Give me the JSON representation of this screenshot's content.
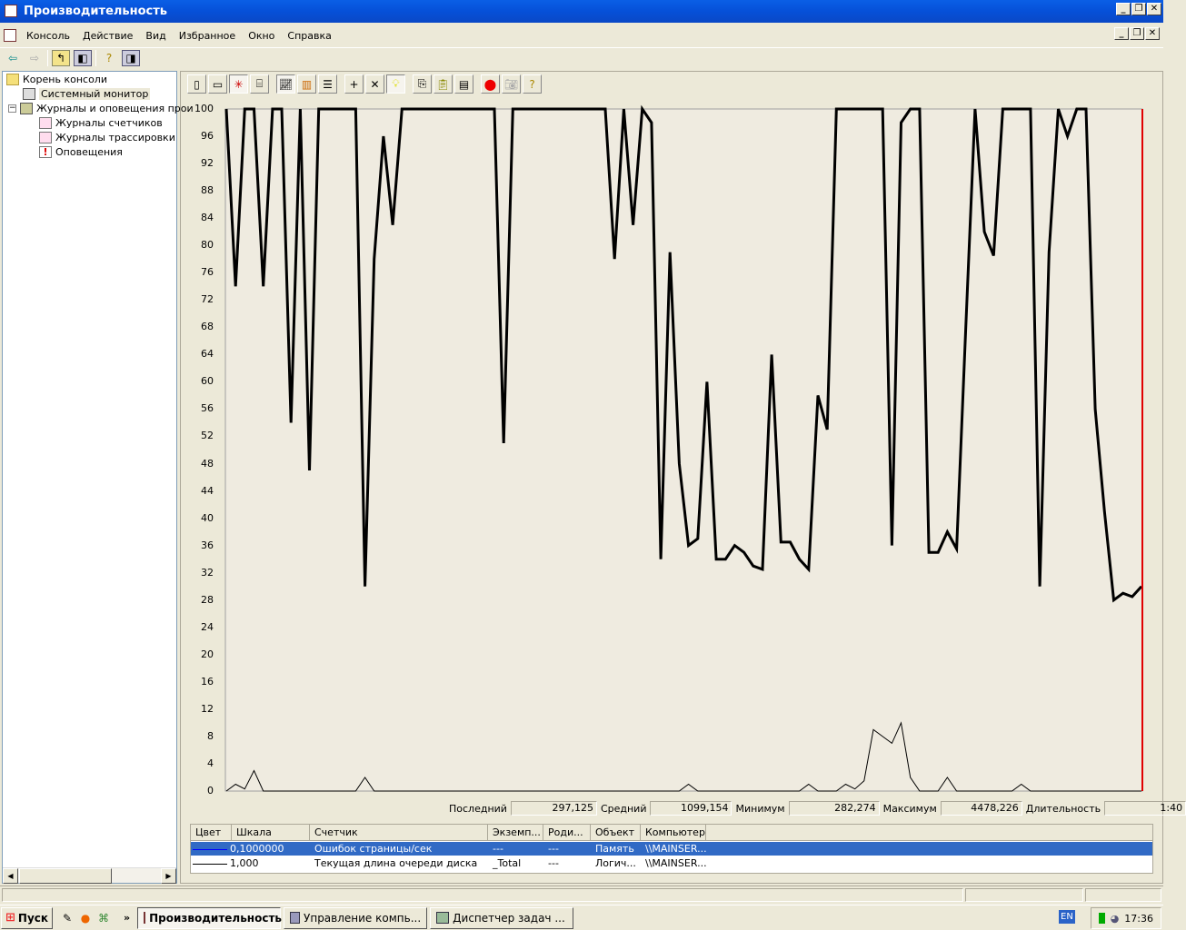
{
  "window": {
    "title": "Производительность"
  },
  "menu": [
    "Консоль",
    "Действие",
    "Вид",
    "Избранное",
    "Окно",
    "Справка"
  ],
  "tree": {
    "root": "Корень консоли",
    "items": [
      {
        "label": "Системный монитор",
        "icon": "monitor-icon",
        "selected": true
      },
      {
        "label": "Журналы и оповещения прои",
        "icon": "logs-icon",
        "expanded": true
      },
      {
        "label": "Журналы счетчиков",
        "icon": "chart-log-icon"
      },
      {
        "label": "Журналы трассировки",
        "icon": "chart-log-icon"
      },
      {
        "label": "Оповещения",
        "icon": "alert-icon"
      }
    ]
  },
  "graph_toolbar": [
    "new-counter-set",
    "clear-display",
    "view-current-activity",
    "view-log-data",
    "view-graph",
    "view-histogram",
    "view-report",
    "add-counter",
    "delete-counter",
    "highlight",
    "copy-properties",
    "paste-counter-list",
    "properties",
    "freeze-display",
    "update-data",
    "help"
  ],
  "chart_data": {
    "type": "line",
    "ylim": [
      0,
      100
    ],
    "yticks": [
      0,
      4,
      8,
      12,
      16,
      20,
      24,
      28,
      32,
      36,
      40,
      44,
      48,
      52,
      56,
      60,
      64,
      68,
      72,
      76,
      80,
      84,
      88,
      92,
      96,
      100
    ],
    "grid": false,
    "samples": 100,
    "current_time_marker_color": "#E00000",
    "series": [
      {
        "name": "Ошибок страницы/сек",
        "highlighted": true,
        "color": "#000000",
        "values": [
          100,
          74,
          100,
          100,
          74,
          100,
          100,
          54,
          100,
          47,
          100,
          100,
          100,
          100,
          100,
          30,
          78,
          96,
          83,
          100,
          100,
          100,
          100,
          100,
          100,
          100,
          100,
          100,
          100,
          100,
          51,
          100,
          100,
          100,
          100,
          100,
          100,
          100,
          100,
          100,
          100,
          100,
          78,
          100,
          83,
          100,
          98,
          34,
          79,
          48,
          36,
          37,
          60,
          34,
          34,
          36,
          35,
          33,
          32.5,
          64,
          36.5,
          36.5,
          34,
          32.5,
          58,
          53,
          100,
          100,
          100,
          100,
          100,
          100,
          36,
          98,
          100,
          100,
          35,
          35,
          38,
          35.5,
          68,
          100,
          82,
          78.5,
          100,
          100,
          100,
          100,
          30,
          79,
          100,
          96,
          100,
          100,
          56,
          41,
          28,
          29,
          28.5,
          30
        ]
      },
      {
        "name": "Текущая длина очереди диска",
        "highlighted": false,
        "color": "#000000",
        "values": [
          0,
          1,
          0.3,
          3,
          0,
          0,
          0,
          0,
          0,
          0,
          0,
          0,
          0,
          0,
          0,
          2,
          0,
          0,
          0,
          0,
          0,
          0,
          0,
          0,
          0,
          0,
          0,
          0,
          0,
          0,
          0,
          0,
          0,
          0,
          0,
          0,
          0,
          0,
          0,
          0,
          0,
          0,
          0,
          0,
          0,
          0,
          0,
          0,
          0,
          0,
          1,
          0,
          0,
          0,
          0,
          0,
          0,
          0,
          0,
          0,
          0,
          0,
          0,
          1,
          0,
          0,
          0,
          1,
          0.3,
          1.5,
          9,
          8,
          7,
          10,
          2,
          0,
          0,
          0,
          2,
          0,
          0,
          0,
          0,
          0,
          0,
          0,
          1,
          0,
          0,
          0,
          0,
          0,
          0,
          0,
          0,
          0,
          0,
          0,
          0,
          0
        ]
      }
    ]
  },
  "stats": {
    "last_label": "Последний",
    "last": "297,125",
    "avg_label": "Средний",
    "avg": "1099,154",
    "min_label": "Минимум",
    "min": "282,274",
    "max_label": "Максимум",
    "max": "4478,226",
    "dur_label": "Длительность",
    "dur": "1:40"
  },
  "counters": {
    "headers": [
      "Цвет",
      "Шкала",
      "Счетчик",
      "Экземп...",
      "Роди...",
      "Объект",
      "Компьютер"
    ],
    "rows": [
      {
        "color": "#0000FF",
        "scale": "0,1000000",
        "counter": "Ошибок страницы/сек",
        "instance": "---",
        "parent": "---",
        "object": "Память",
        "computer": "\\\\MAINSER..."
      },
      {
        "color": "#000000",
        "scale": "1,000",
        "counter": "Текущая длина очереди диска",
        "instance": "_Total",
        "parent": "---",
        "object": "Логич...",
        "computer": "\\\\MAINSER..."
      }
    ]
  },
  "taskbar": {
    "start": "Пуск",
    "buttons": [
      {
        "label": "Производительность",
        "active": true
      },
      {
        "label": "Управление компь...",
        "active": false
      },
      {
        "label": "Диспетчер задач ...",
        "active": false
      }
    ],
    "lang": "EN",
    "clock": "17:36"
  }
}
